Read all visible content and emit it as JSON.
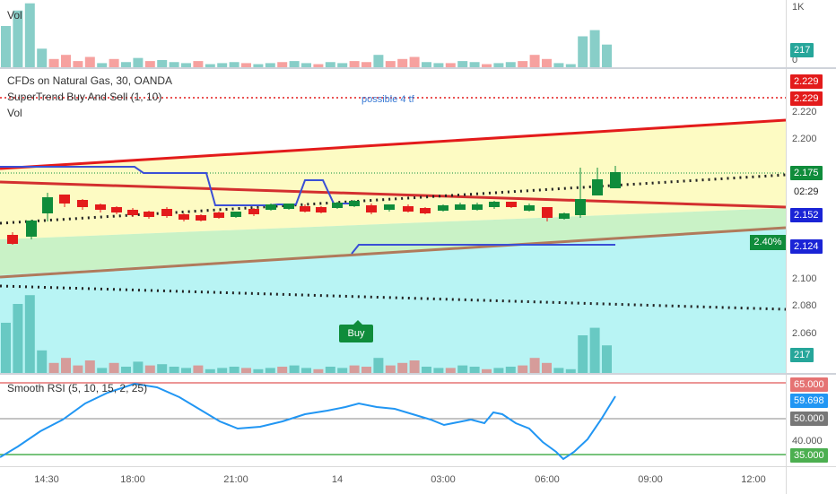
{
  "top_pane": {
    "legend": "Vol",
    "axis_labels": [
      "1K",
      "0"
    ],
    "vol_label": "217"
  },
  "main_pane": {
    "legend_title": "CFDs on Natural Gas, 30, OANDA",
    "legend_indicator": "SuperTrend Buy And Sell (1, 10)",
    "legend_vol": "Vol",
    "annotation": "possible 4 tf",
    "buy_label": "Buy",
    "percent_change": "2.40%",
    "axis_labels": [
      "2.220",
      "2.200",
      "2.100",
      "2.080",
      "2.060"
    ],
    "price_labels": [
      {
        "text": "2.229",
        "color": "#e31b1b"
      },
      {
        "text": "2.229",
        "color": "#e31b1b"
      },
      {
        "text": "2.175",
        "color": "#0f8c3b"
      },
      {
        "text": "02:29",
        "color": "#ffffff"
      },
      {
        "text": "2.152",
        "color": "#1a24d6"
      },
      {
        "text": "2.124",
        "color": "#1a24d6"
      },
      {
        "text": "217",
        "color": "#26a69a"
      }
    ]
  },
  "rsi_pane": {
    "legend": "Smooth RSI  (5, 10, 15, 2, 25)",
    "axis_labels": [
      "40.000"
    ],
    "levels": [
      {
        "text": "65.000",
        "color": "#e57373"
      },
      {
        "text": "59.698",
        "color": "#2196f3"
      },
      {
        "text": "50.000",
        "color": "#777777"
      },
      {
        "text": "35.000",
        "color": "#4caf50"
      }
    ]
  },
  "time_axis": [
    "14:30",
    "18:00",
    "21:00",
    "14",
    "03:00",
    "06:00",
    "09:00",
    "12:00"
  ],
  "colors": {
    "bull": "#26a69a",
    "bear": "#ef5350",
    "up_candle": "#0f8c3b",
    "down_candle": "#e31b1b",
    "supertrend": "#3a4fd6",
    "rsi_line": "#2196f3"
  }
}
